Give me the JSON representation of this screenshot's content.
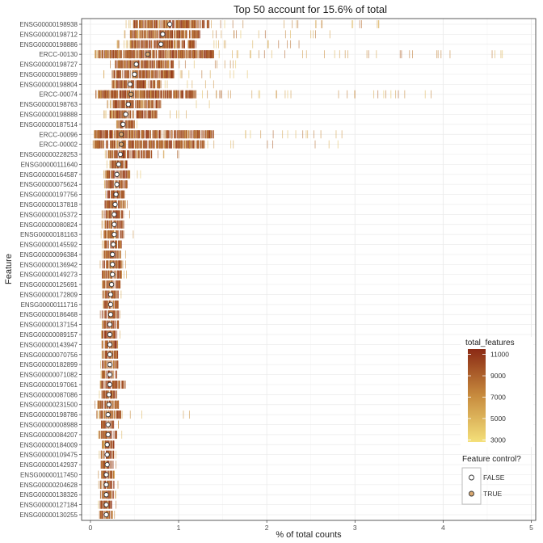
{
  "chart_data": {
    "type": "scatter",
    "title": "Top 50 account for 15.6% of total",
    "xlabel": "% of total counts",
    "ylabel": "Feature",
    "xlim": [
      -0.1,
      5.05
    ],
    "x_ticks": [
      0,
      1,
      2,
      3,
      4,
      5
    ],
    "grid": true,
    "features": [
      {
        "name": "ENSG00000198938",
        "mean": 0.9,
        "control": false,
        "core": [
          0.48,
          1.35
        ],
        "spread": [
          0.4,
          3.45
        ]
      },
      {
        "name": "ENSG00000198712",
        "mean": 0.82,
        "control": false,
        "core": [
          0.45,
          1.25
        ],
        "spread": [
          0.38,
          2.8
        ]
      },
      {
        "name": "ENSG00000198886",
        "mean": 0.8,
        "control": false,
        "core": [
          0.45,
          1.2
        ],
        "spread": [
          0.3,
          2.6
        ]
      },
      {
        "name": "ERCC-00130",
        "mean": 0.65,
        "control": true,
        "core": [
          0.08,
          1.4
        ],
        "spread": [
          0.05,
          4.75
        ]
      },
      {
        "name": "ENSG00000198727",
        "mean": 0.52,
        "control": false,
        "core": [
          0.28,
          0.95
        ],
        "spread": [
          0.2,
          1.7
        ]
      },
      {
        "name": "ENSG00000198899",
        "mean": 0.5,
        "control": false,
        "core": [
          0.25,
          0.95
        ],
        "spread": [
          0.15,
          1.8
        ]
      },
      {
        "name": "ENSG00000198804",
        "mean": 0.45,
        "control": false,
        "core": [
          0.25,
          0.8
        ],
        "spread": [
          0.18,
          1.45
        ]
      },
      {
        "name": "ERCC-00074",
        "mean": 0.46,
        "control": true,
        "core": [
          0.06,
          1.2
        ],
        "spread": [
          0.05,
          4.05
        ]
      },
      {
        "name": "ENSG00000198763",
        "mean": 0.43,
        "control": false,
        "core": [
          0.25,
          0.8
        ],
        "spread": [
          0.18,
          1.4
        ]
      },
      {
        "name": "ENSG00000198888",
        "mean": 0.4,
        "control": false,
        "core": [
          0.22,
          0.75
        ],
        "spread": [
          0.15,
          1.15
        ]
      },
      {
        "name": "ENSG00000187514",
        "mean": 0.37,
        "control": false,
        "core": [
          0.3,
          0.5
        ],
        "spread": [
          0.28,
          0.55
        ]
      },
      {
        "name": "ERCC-00096",
        "mean": 0.35,
        "control": true,
        "core": [
          0.05,
          1.4
        ],
        "spread": [
          0.04,
          2.95
        ]
      },
      {
        "name": "ERCC-00002",
        "mean": 0.35,
        "control": true,
        "core": [
          0.04,
          1.3
        ],
        "spread": [
          0.03,
          2.9
        ]
      },
      {
        "name": "ENSG00000228253",
        "mean": 0.34,
        "control": false,
        "core": [
          0.2,
          0.7
        ],
        "spread": [
          0.15,
          1.1
        ]
      },
      {
        "name": "ENSG00000111640",
        "mean": 0.32,
        "control": false,
        "core": [
          0.2,
          0.42
        ],
        "spread": [
          0.18,
          0.5
        ]
      },
      {
        "name": "ENSG00000164587",
        "mean": 0.3,
        "control": false,
        "core": [
          0.18,
          0.45
        ],
        "spread": [
          0.15,
          0.65
        ]
      },
      {
        "name": "ENSG00000075624",
        "mean": 0.3,
        "control": false,
        "core": [
          0.18,
          0.42
        ],
        "spread": [
          0.15,
          0.5
        ]
      },
      {
        "name": "ENSG00000197756",
        "mean": 0.29,
        "control": false,
        "core": [
          0.18,
          0.4
        ],
        "spread": [
          0.15,
          0.45
        ]
      },
      {
        "name": "ENSG00000137818",
        "mean": 0.28,
        "control": false,
        "core": [
          0.16,
          0.4
        ],
        "spread": [
          0.14,
          0.52
        ]
      },
      {
        "name": "ENSG00000105372",
        "mean": 0.27,
        "control": false,
        "core": [
          0.16,
          0.38
        ],
        "spread": [
          0.12,
          0.45
        ]
      },
      {
        "name": "ENSG00000080824",
        "mean": 0.27,
        "control": false,
        "core": [
          0.16,
          0.38
        ],
        "spread": [
          0.13,
          0.45
        ]
      },
      {
        "name": "ENSG00000181163",
        "mean": 0.27,
        "control": false,
        "core": [
          0.15,
          0.38
        ],
        "spread": [
          0.12,
          0.55
        ]
      },
      {
        "name": "ENSG00000145592",
        "mean": 0.26,
        "control": false,
        "core": [
          0.16,
          0.36
        ],
        "spread": [
          0.13,
          0.4
        ]
      },
      {
        "name": "ENSG00000096384",
        "mean": 0.25,
        "control": false,
        "core": [
          0.15,
          0.35
        ],
        "spread": [
          0.12,
          0.4
        ]
      },
      {
        "name": "ENSG00000136942",
        "mean": 0.25,
        "control": false,
        "core": [
          0.13,
          0.37
        ],
        "spread": [
          0.1,
          0.42
        ]
      },
      {
        "name": "ENSG00000149273",
        "mean": 0.25,
        "control": false,
        "core": [
          0.13,
          0.36
        ],
        "spread": [
          0.11,
          0.42
        ]
      },
      {
        "name": "ENSG00000125691",
        "mean": 0.24,
        "control": false,
        "core": [
          0.14,
          0.34
        ],
        "spread": [
          0.12,
          0.38
        ]
      },
      {
        "name": "ENSG00000172809",
        "mean": 0.23,
        "control": false,
        "core": [
          0.14,
          0.33
        ],
        "spread": [
          0.12,
          0.37
        ]
      },
      {
        "name": "ENSG00000111716",
        "mean": 0.23,
        "control": false,
        "core": [
          0.14,
          0.32
        ],
        "spread": [
          0.12,
          0.36
        ]
      },
      {
        "name": "ENSG00000186468",
        "mean": 0.23,
        "control": false,
        "core": [
          0.13,
          0.32
        ],
        "spread": [
          0.11,
          0.36
        ]
      },
      {
        "name": "ENSG00000137154",
        "mean": 0.22,
        "control": false,
        "core": [
          0.13,
          0.32
        ],
        "spread": [
          0.11,
          0.35
        ]
      },
      {
        "name": "ENSG00000089157",
        "mean": 0.22,
        "control": false,
        "core": [
          0.13,
          0.31
        ],
        "spread": [
          0.11,
          0.34
        ]
      },
      {
        "name": "ENSG00000143947",
        "mean": 0.22,
        "control": false,
        "core": [
          0.13,
          0.31
        ],
        "spread": [
          0.11,
          0.34
        ]
      },
      {
        "name": "ENSG00000070756",
        "mean": 0.22,
        "control": false,
        "core": [
          0.13,
          0.31
        ],
        "spread": [
          0.11,
          0.34
        ]
      },
      {
        "name": "ENSG00000182899",
        "mean": 0.22,
        "control": false,
        "core": [
          0.13,
          0.31
        ],
        "spread": [
          0.11,
          0.34
        ]
      },
      {
        "name": "ENSG00000071082",
        "mean": 0.22,
        "control": false,
        "core": [
          0.13,
          0.3
        ],
        "spread": [
          0.11,
          0.33
        ]
      },
      {
        "name": "ENSG00000197061",
        "mean": 0.22,
        "control": false,
        "core": [
          0.12,
          0.4
        ],
        "spread": [
          0.1,
          0.45
        ]
      },
      {
        "name": "ENSG00000087086",
        "mean": 0.21,
        "control": false,
        "core": [
          0.12,
          0.3
        ],
        "spread": [
          0.1,
          0.33
        ]
      },
      {
        "name": "ENSG00000231500",
        "mean": 0.21,
        "control": false,
        "core": [
          0.08,
          0.32
        ],
        "spread": [
          0.05,
          0.35
        ]
      },
      {
        "name": "ENSG00000198786",
        "mean": 0.2,
        "control": false,
        "core": [
          0.1,
          0.35
        ],
        "spread": [
          0.07,
          1.15
        ]
      },
      {
        "name": "ENSG00000008988",
        "mean": 0.2,
        "control": false,
        "core": [
          0.12,
          0.28
        ],
        "spread": [
          0.1,
          0.32
        ]
      },
      {
        "name": "ENSG00000084207",
        "mean": 0.2,
        "control": false,
        "core": [
          0.1,
          0.3
        ],
        "spread": [
          0.08,
          0.36
        ]
      },
      {
        "name": "ENSG00000184009",
        "mean": 0.19,
        "control": false,
        "core": [
          0.12,
          0.28
        ],
        "spread": [
          0.1,
          0.3
        ]
      },
      {
        "name": "ENSG00000109475",
        "mean": 0.19,
        "control": false,
        "core": [
          0.12,
          0.27
        ],
        "spread": [
          0.1,
          0.3
        ]
      },
      {
        "name": "ENSG00000142937",
        "mean": 0.19,
        "control": false,
        "core": [
          0.12,
          0.27
        ],
        "spread": [
          0.1,
          0.3
        ]
      },
      {
        "name": "ENSG00000117450",
        "mean": 0.18,
        "control": false,
        "core": [
          0.11,
          0.27
        ],
        "spread": [
          0.09,
          0.3
        ]
      },
      {
        "name": "ENSG00000204628",
        "mean": 0.18,
        "control": false,
        "core": [
          0.11,
          0.27
        ],
        "spread": [
          0.09,
          0.32
        ]
      },
      {
        "name": "ENSG00000138326",
        "mean": 0.18,
        "control": false,
        "core": [
          0.11,
          0.27
        ],
        "spread": [
          0.09,
          0.3
        ]
      },
      {
        "name": "ENSG00000127184",
        "mean": 0.18,
        "control": false,
        "core": [
          0.11,
          0.26
        ],
        "spread": [
          0.09,
          0.29
        ]
      },
      {
        "name": "ENSG00000130255",
        "mean": 0.18,
        "control": false,
        "core": [
          0.11,
          0.26
        ],
        "spread": [
          0.09,
          0.28
        ]
      }
    ],
    "colorbar": {
      "title": "total_features",
      "ticks": [
        3000,
        5000,
        7000,
        9000,
        11000
      ],
      "range": [
        2800,
        11500
      ],
      "colors": [
        "#f4e07a",
        "#c78b3e",
        "#8b2a14"
      ]
    },
    "legend": {
      "title": "Feature control?",
      "position": "right",
      "items": [
        {
          "label": "FALSE",
          "fill": "#ffffff"
        },
        {
          "label": "TRUE",
          "fill": "#d9a870"
        }
      ]
    },
    "colors": {
      "grid": "#ebebeb",
      "panel_border": "#333333",
      "mean_point_stroke": "#333333"
    }
  }
}
